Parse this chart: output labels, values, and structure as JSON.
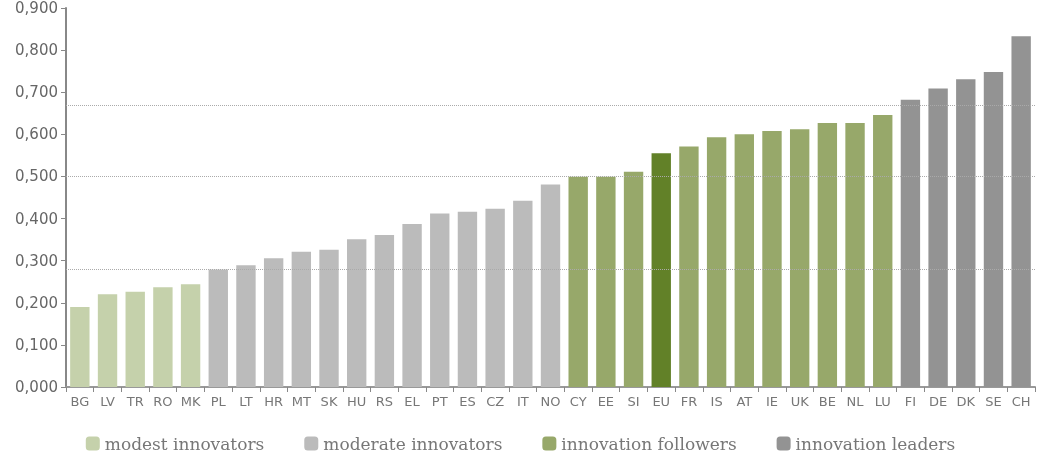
{
  "chart_data": {
    "type": "bar",
    "categories": [
      "BG",
      "LV",
      "TR",
      "RO",
      "MK",
      "PL",
      "LT",
      "HR",
      "MT",
      "SK",
      "HU",
      "RS",
      "EL",
      "PT",
      "ES",
      "CZ",
      "IT",
      "NO",
      "CY",
      "EE",
      "SI",
      "EU",
      "FR",
      "IS",
      "AT",
      "IE",
      "UK",
      "BE",
      "NL",
      "LU",
      "FI",
      "DE",
      "DK",
      "SE",
      "CH"
    ],
    "series": [
      {
        "name": "modest innovators",
        "color": "#c5d1ab",
        "values": [
          0.19,
          0.22,
          0.226,
          0.237,
          0.244,
          null,
          null,
          null,
          null,
          null,
          null,
          null,
          null,
          null,
          null,
          null,
          null,
          null,
          null,
          null,
          null,
          null,
          null,
          null,
          null,
          null,
          null,
          null,
          null,
          null,
          null,
          null,
          null,
          null,
          null
        ]
      },
      {
        "name": "moderate innovators",
        "color": "#bbbbbb",
        "values": [
          null,
          null,
          null,
          null,
          null,
          0.279,
          0.289,
          0.306,
          0.321,
          0.326,
          0.351,
          0.361,
          0.387,
          0.412,
          0.416,
          0.423,
          0.442,
          0.481,
          null,
          null,
          null,
          null,
          null,
          null,
          null,
          null,
          null,
          null,
          null,
          null,
          null,
          null,
          null,
          null,
          null
        ]
      },
      {
        "name": "innovation followers",
        "color": "#97a86a",
        "colors": [
          "#97a86a",
          "#97a86a",
          "#97a86a",
          "#97a86a",
          "#97a86a",
          "#97a86a",
          "#97a86a",
          "#97a86a",
          "#97a86a",
          "#97a86a",
          "#97a86a",
          "#97a86a",
          "#97a86a",
          "#97a86a",
          "#97a86a",
          "#97a86a",
          "#97a86a",
          "#97a86a",
          "#97a86a",
          "#97a86a",
          "#97a86a",
          "#628128",
          "#97a86a",
          "#97a86a",
          "#97a86a",
          "#97a86a",
          "#97a86a",
          "#97a86a",
          "#97a86a",
          "#97a86a",
          "#97a86a",
          "#97a86a",
          "#97a86a",
          "#97a86a",
          "#97a86a"
        ],
        "values": [
          null,
          null,
          null,
          null,
          null,
          null,
          null,
          null,
          null,
          null,
          null,
          null,
          null,
          null,
          null,
          null,
          null,
          null,
          0.499,
          0.499,
          0.511,
          0.555,
          0.571,
          0.593,
          0.6,
          0.608,
          0.612,
          0.627,
          0.627,
          0.646,
          null,
          null,
          null,
          null,
          null
        ]
      },
      {
        "name": "innovation leaders",
        "color": "#939393",
        "values": [
          null,
          null,
          null,
          null,
          null,
          null,
          null,
          null,
          null,
          null,
          null,
          null,
          null,
          null,
          null,
          null,
          null,
          null,
          null,
          null,
          null,
          null,
          null,
          null,
          null,
          null,
          null,
          null,
          null,
          null,
          0.682,
          0.709,
          0.731,
          0.748,
          0.833
        ]
      }
    ],
    "ylim": [
      0,
      0.9
    ],
    "yticks": [
      {
        "value": 0,
        "label": "0,000"
      },
      {
        "value": 0.1,
        "label": "0,100"
      },
      {
        "value": 0.2,
        "label": "0,200"
      },
      {
        "value": 0.3,
        "label": "0,300"
      },
      {
        "value": 0.4,
        "label": "0,400"
      },
      {
        "value": 0.5,
        "label": "0,500"
      },
      {
        "value": 0.6,
        "label": "0,600"
      },
      {
        "value": 0.7,
        "label": "0,700"
      },
      {
        "value": 0.8,
        "label": "0,800"
      },
      {
        "value": 0.9,
        "label": "0,900"
      }
    ],
    "ref_lines": [
      {
        "axis": "y",
        "value": 0.28,
        "color": "#aaaaaa",
        "line_style": "dotted"
      },
      {
        "axis": "y",
        "value": 0.5,
        "color": "#aaaaaa",
        "line_style": "dotted"
      },
      {
        "axis": "y",
        "value": 0.67,
        "color": "#aaaaaa",
        "line_style": "dotted"
      }
    ],
    "grid": false,
    "legend": "bottom"
  }
}
